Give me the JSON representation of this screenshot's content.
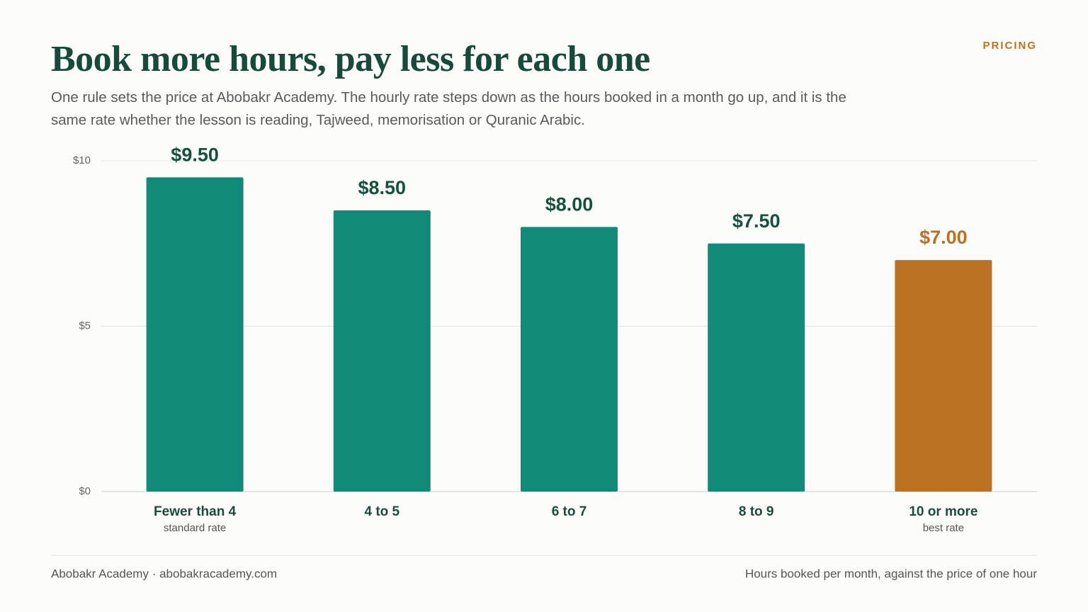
{
  "eyebrow": "PRICING",
  "chart_data": {
    "type": "bar",
    "title": "Book more hours, pay less for each one",
    "subtitle": "One rule sets the price at Abobakr Academy. The hourly rate steps down as the hours booked in a month go up, and it is the same rate whether the lesson is reading, Tajweed, memorisation or Quranic Arabic.",
    "categories": [
      "Fewer than 4",
      "4 to 5",
      "6 to 7",
      "8 to 9",
      "10 or more"
    ],
    "sublabels": [
      "standard rate",
      null,
      null,
      null,
      "best rate"
    ],
    "values": [
      9.5,
      8.5,
      8,
      7.5,
      7
    ],
    "value_labels": [
      "$9.50",
      "$8.50",
      "$8.00",
      "$7.50",
      "$7.00"
    ],
    "colors": [
      "#128a78",
      "#128a78",
      "#128a78",
      "#128a78",
      "#b87222"
    ],
    "value_label_colors": [
      "#16503f",
      "#16503f",
      "#16503f",
      "#16503f",
      "#b87222"
    ],
    "ylim": [
      0,
      10
    ],
    "yticks": [
      {
        "value": 0,
        "label": "$0"
      },
      {
        "value": 5,
        "label": "$5"
      },
      {
        "value": 10,
        "label": "$10"
      }
    ],
    "grid": true
  },
  "footer": {
    "left": "Abobakr Academy · abobakracademy.com",
    "right": "Hours booked per month, against the price of one hour"
  }
}
